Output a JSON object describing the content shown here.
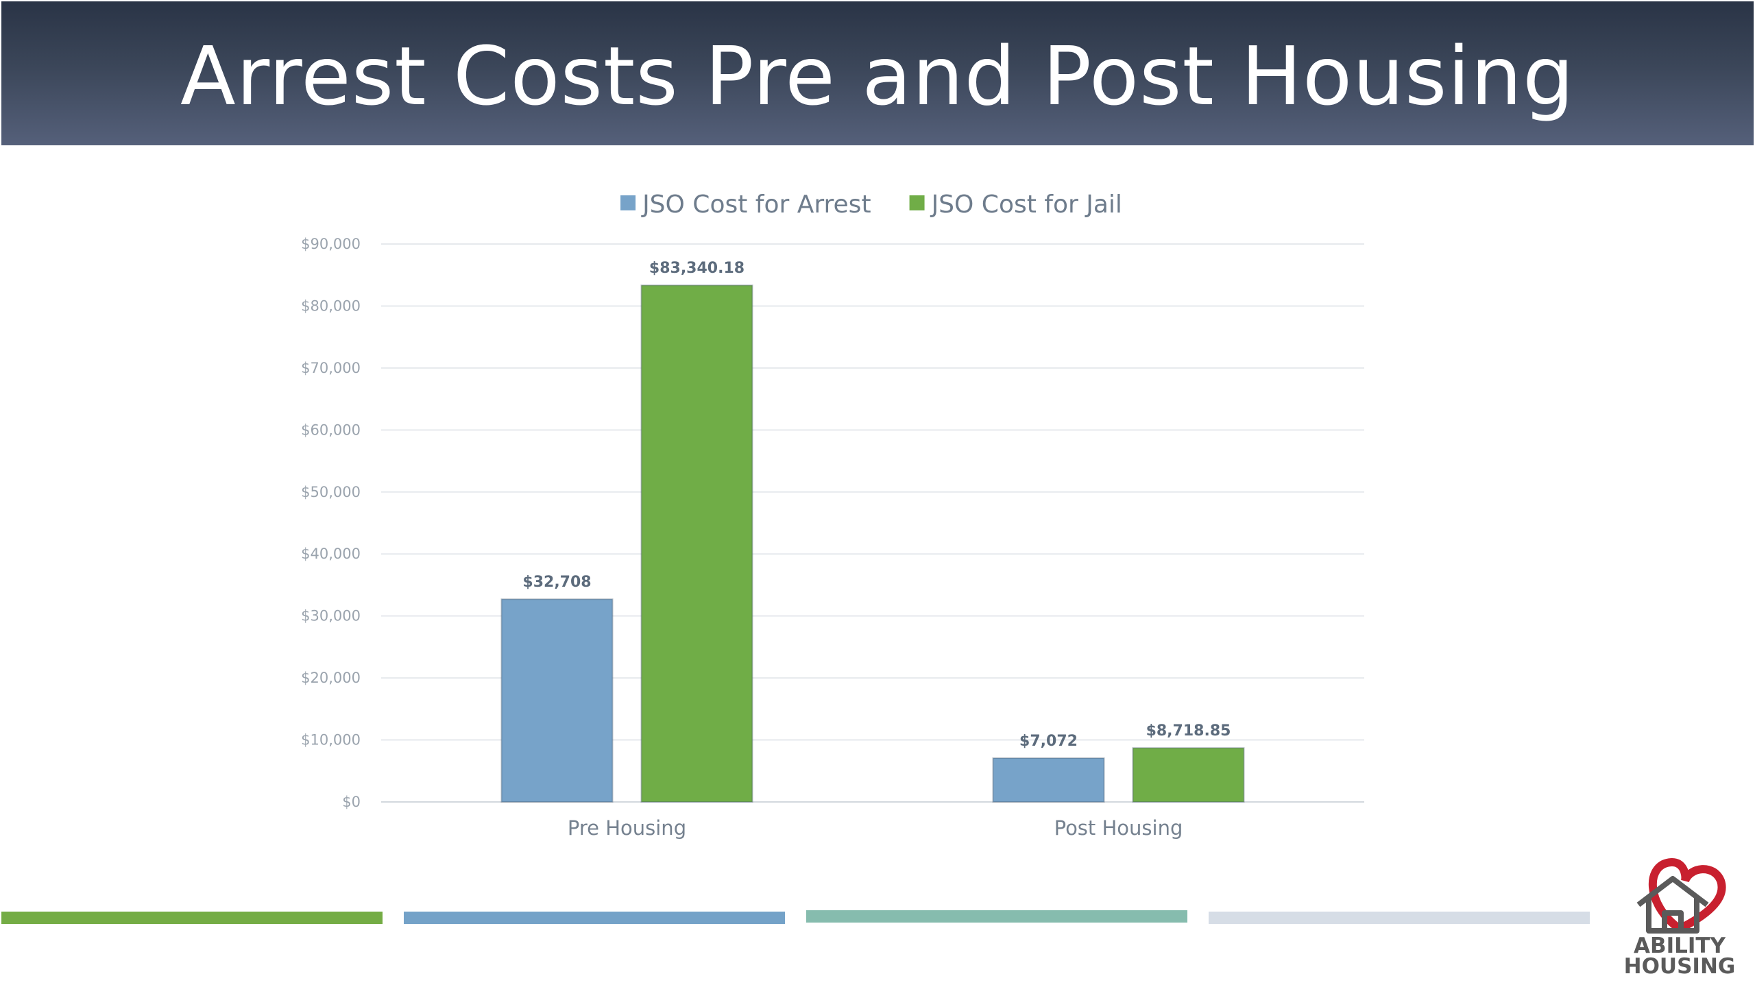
{
  "slide": {
    "title": "Arrest Costs Pre and Post Housing"
  },
  "logo": {
    "line1": "ABILITY",
    "line2": "HOUSING",
    "heart_color": "#c8202f",
    "house_color": "#5a5a5a"
  },
  "decorative_bars": {
    "colors": [
      "#74ac45",
      "#74a2c8",
      "#86bcae",
      "#d6dde6"
    ]
  },
  "chart_data": {
    "type": "bar",
    "categories": [
      "Pre Housing",
      "Post Housing"
    ],
    "series": [
      {
        "name": "JSO Cost for Arrest",
        "color": "#77a3c9",
        "values": [
          32708,
          7072
        ],
        "labels": [
          "$32,708",
          "$7,072"
        ]
      },
      {
        "name": "JSO Cost for Jail",
        "color": "#70ad47",
        "values": [
          83340.18,
          8718.85
        ],
        "labels": [
          "$83,340.18",
          "$8,718.85"
        ]
      }
    ],
    "ylim": [
      0,
      90000
    ],
    "yticks": [
      0,
      10000,
      20000,
      30000,
      40000,
      50000,
      60000,
      70000,
      80000,
      90000
    ],
    "ytick_labels": [
      "$0",
      "$10,000",
      "$20,000",
      "$30,000",
      "$40,000",
      "$50,000",
      "$60,000",
      "$70,000",
      "$80,000",
      "$90,000"
    ],
    "grid": true,
    "legend_position": "top-center",
    "xlabel": "",
    "ylabel": ""
  }
}
